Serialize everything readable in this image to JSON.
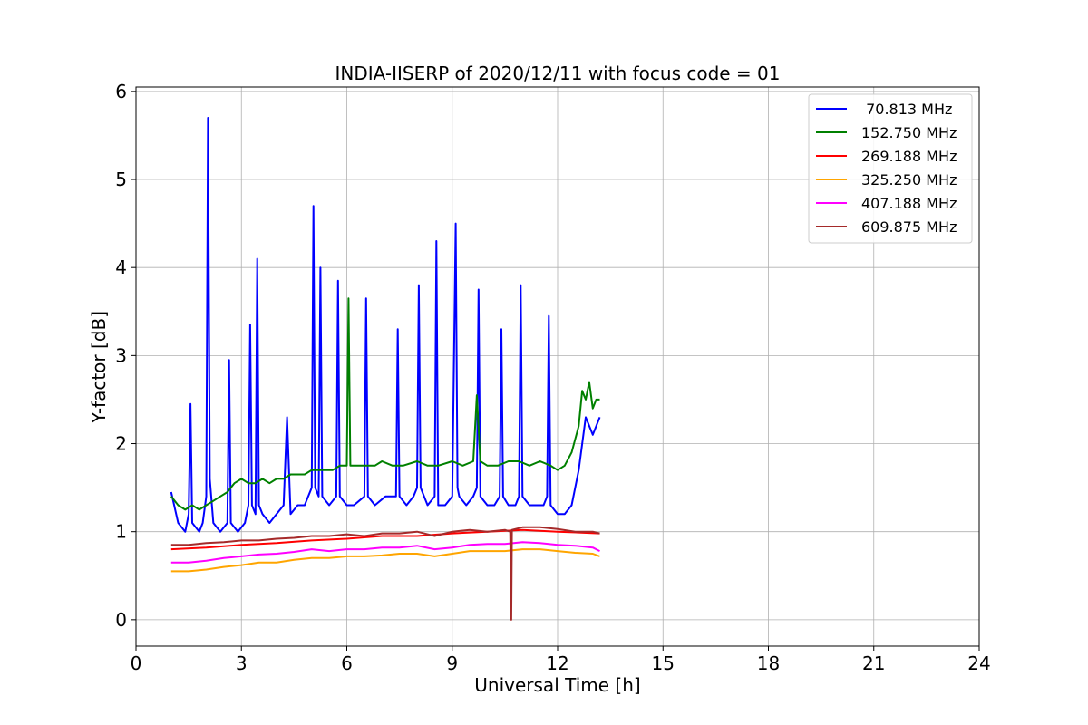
{
  "chart_data": {
    "type": "line",
    "title": "INDIA-IISERP of 2020/12/11 with focus code = 01",
    "xlabel": "Universal Time [h]",
    "ylabel": "Y-factor [dB]",
    "xlim": [
      0,
      24
    ],
    "ylim": [
      -0.3,
      6.05
    ],
    "xticks": [
      0,
      3,
      6,
      9,
      12,
      15,
      18,
      21,
      24
    ],
    "yticks": [
      0,
      1,
      2,
      3,
      4,
      5,
      6
    ],
    "grid": true,
    "legend_position": "top-right",
    "series": [
      {
        "name": " 70.813 MHz",
        "color": "#0000ff",
        "x": [
          1.0,
          1.2,
          1.4,
          1.5,
          1.55,
          1.6,
          1.8,
          1.9,
          2.0,
          2.05,
          2.1,
          2.2,
          2.4,
          2.6,
          2.65,
          2.7,
          2.9,
          3.1,
          3.2,
          3.25,
          3.3,
          3.4,
          3.45,
          3.5,
          3.6,
          3.8,
          4.0,
          4.2,
          4.3,
          4.4,
          4.6,
          4.8,
          5.0,
          5.05,
          5.1,
          5.2,
          5.25,
          5.3,
          5.5,
          5.7,
          5.75,
          5.8,
          6.0,
          6.2,
          6.5,
          6.55,
          6.6,
          6.8,
          7.1,
          7.4,
          7.45,
          7.5,
          7.7,
          7.9,
          8.0,
          8.05,
          8.1,
          8.3,
          8.5,
          8.55,
          8.6,
          8.8,
          9.0,
          9.1,
          9.15,
          9.2,
          9.4,
          9.6,
          9.7,
          9.75,
          9.8,
          10.0,
          10.2,
          10.35,
          10.4,
          10.45,
          10.6,
          10.8,
          10.9,
          10.95,
          11.0,
          11.2,
          11.4,
          11.6,
          11.7,
          11.75,
          11.8,
          12.0,
          12.2,
          12.4,
          12.6,
          12.8,
          13.0,
          13.2
        ],
        "y": [
          1.45,
          1.1,
          1.0,
          1.2,
          2.45,
          1.1,
          1.0,
          1.1,
          1.4,
          5.7,
          1.6,
          1.1,
          1.0,
          1.1,
          2.95,
          1.1,
          1.0,
          1.1,
          1.3,
          3.35,
          1.3,
          1.2,
          4.1,
          1.3,
          1.2,
          1.1,
          1.2,
          1.3,
          2.3,
          1.2,
          1.3,
          1.3,
          1.5,
          4.7,
          1.5,
          1.4,
          4.0,
          1.4,
          1.3,
          1.4,
          3.85,
          1.4,
          1.3,
          1.3,
          1.4,
          3.65,
          1.4,
          1.3,
          1.4,
          1.4,
          3.3,
          1.4,
          1.3,
          1.4,
          1.5,
          3.8,
          1.5,
          1.3,
          1.4,
          4.3,
          1.3,
          1.3,
          1.4,
          4.5,
          1.5,
          1.4,
          1.3,
          1.4,
          1.5,
          3.75,
          1.4,
          1.3,
          1.3,
          1.4,
          3.3,
          1.4,
          1.3,
          1.3,
          1.4,
          3.8,
          1.4,
          1.3,
          1.3,
          1.3,
          1.4,
          3.45,
          1.3,
          1.2,
          1.2,
          1.3,
          1.7,
          2.3,
          2.1,
          2.3
        ]
      },
      {
        "name": "152.750 MHz",
        "color": "#008000",
        "x": [
          1.0,
          1.2,
          1.4,
          1.6,
          1.8,
          2.0,
          2.2,
          2.4,
          2.6,
          2.8,
          3.0,
          3.2,
          3.4,
          3.6,
          3.8,
          4.0,
          4.2,
          4.4,
          4.6,
          4.8,
          5.0,
          5.2,
          5.4,
          5.6,
          5.8,
          6.0,
          6.05,
          6.1,
          6.3,
          6.5,
          6.8,
          7.0,
          7.3,
          7.6,
          8.0,
          8.3,
          8.6,
          9.0,
          9.3,
          9.6,
          9.7,
          9.8,
          10.0,
          10.3,
          10.6,
          10.9,
          11.2,
          11.5,
          11.8,
          12.0,
          12.2,
          12.4,
          12.6,
          12.7,
          12.8,
          12.9,
          13.0,
          13.1,
          13.2
        ],
        "y": [
          1.4,
          1.3,
          1.25,
          1.3,
          1.25,
          1.3,
          1.35,
          1.4,
          1.45,
          1.55,
          1.6,
          1.55,
          1.55,
          1.6,
          1.55,
          1.6,
          1.6,
          1.65,
          1.65,
          1.65,
          1.7,
          1.7,
          1.7,
          1.7,
          1.75,
          1.75,
          3.65,
          1.75,
          1.75,
          1.75,
          1.75,
          1.8,
          1.75,
          1.75,
          1.8,
          1.75,
          1.75,
          1.8,
          1.75,
          1.8,
          2.55,
          1.8,
          1.75,
          1.75,
          1.8,
          1.8,
          1.75,
          1.8,
          1.75,
          1.7,
          1.75,
          1.9,
          2.2,
          2.6,
          2.5,
          2.7,
          2.4,
          2.5,
          2.5
        ]
      },
      {
        "name": "269.188 MHz",
        "color": "#ff0000",
        "x": [
          1.0,
          2.0,
          3.0,
          4.0,
          5.0,
          6.0,
          7.0,
          8.0,
          9.0,
          10.0,
          11.0,
          12.0,
          13.2
        ],
        "y": [
          0.8,
          0.82,
          0.85,
          0.87,
          0.9,
          0.92,
          0.95,
          0.95,
          0.98,
          1.0,
          1.02,
          1.0,
          0.98
        ]
      },
      {
        "name": "325.250 MHz",
        "color": "#ffa500",
        "x": [
          1.0,
          1.5,
          2.0,
          2.5,
          3.0,
          3.5,
          4.0,
          4.5,
          5.0,
          5.5,
          6.0,
          6.5,
          7.0,
          7.5,
          8.0,
          8.5,
          9.0,
          9.5,
          10.0,
          10.5,
          11.0,
          11.5,
          12.0,
          12.5,
          13.0,
          13.2
        ],
        "y": [
          0.55,
          0.55,
          0.57,
          0.6,
          0.62,
          0.65,
          0.65,
          0.68,
          0.7,
          0.7,
          0.72,
          0.72,
          0.73,
          0.75,
          0.75,
          0.72,
          0.75,
          0.78,
          0.78,
          0.78,
          0.8,
          0.8,
          0.78,
          0.76,
          0.75,
          0.72
        ]
      },
      {
        "name": "407.188 MHz",
        "color": "#ff00ff",
        "x": [
          1.0,
          1.5,
          2.0,
          2.5,
          3.0,
          3.5,
          4.0,
          4.5,
          5.0,
          5.5,
          6.0,
          6.5,
          7.0,
          7.5,
          8.0,
          8.5,
          9.0,
          9.5,
          10.0,
          10.5,
          11.0,
          11.5,
          12.0,
          12.5,
          13.0,
          13.2
        ],
        "y": [
          0.65,
          0.65,
          0.67,
          0.7,
          0.72,
          0.74,
          0.75,
          0.77,
          0.8,
          0.78,
          0.8,
          0.8,
          0.82,
          0.82,
          0.84,
          0.8,
          0.82,
          0.85,
          0.86,
          0.86,
          0.88,
          0.87,
          0.85,
          0.84,
          0.82,
          0.78
        ]
      },
      {
        "name": "609.875 MHz",
        "color": "#a52a2a",
        "x": [
          1.0,
          1.5,
          2.0,
          2.5,
          3.0,
          3.5,
          4.0,
          4.5,
          5.0,
          5.5,
          6.0,
          6.5,
          7.0,
          7.5,
          8.0,
          8.5,
          9.0,
          9.5,
          10.0,
          10.5,
          10.65,
          10.68,
          10.7,
          11.0,
          11.5,
          12.0,
          12.5,
          13.0,
          13.2
        ],
        "y": [
          0.85,
          0.85,
          0.87,
          0.88,
          0.9,
          0.9,
          0.92,
          0.93,
          0.95,
          0.95,
          0.97,
          0.95,
          0.98,
          0.98,
          1.0,
          0.95,
          1.0,
          1.02,
          1.0,
          1.02,
          1.0,
          0.0,
          1.02,
          1.05,
          1.05,
          1.03,
          1.0,
          1.0,
          0.98
        ]
      }
    ]
  }
}
